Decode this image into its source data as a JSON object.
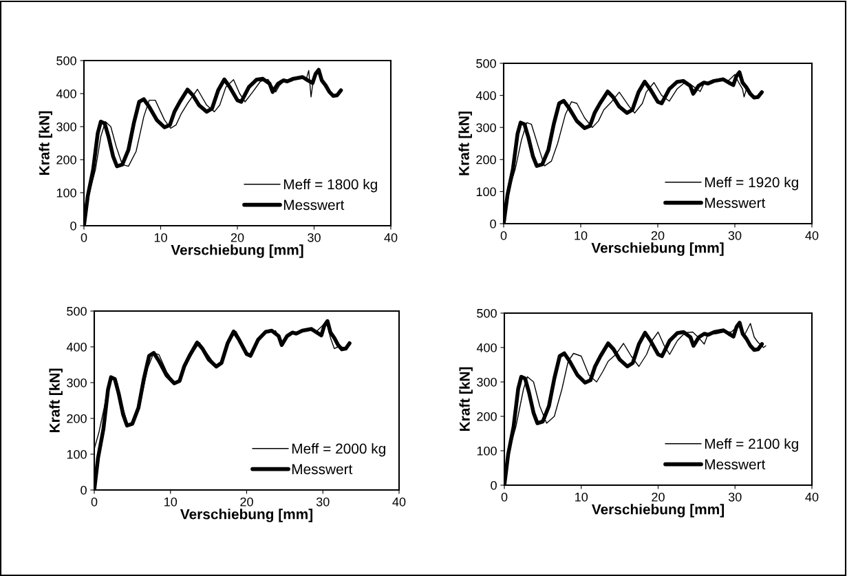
{
  "chart_data": [
    {
      "type": "line",
      "xlabel": "Verschiebung [mm]",
      "ylabel": "Kraft [kN]",
      "xlim": [
        0,
        40
      ],
      "ylim": [
        0,
        500
      ],
      "xticks": [
        0,
        10,
        20,
        30,
        40
      ],
      "yticks": [
        0,
        100,
        200,
        300,
        400,
        500
      ],
      "grid": false,
      "legend": "bottom right",
      "series": [
        {
          "name": "Meff = 1800 kg",
          "color": "#000000",
          "x": [
            0,
            0.5,
            1.5,
            2.2,
            2.8,
            3.5,
            4.2,
            5,
            5.8,
            6.8,
            7.8,
            8.5,
            9.3,
            10.5,
            11.3,
            12,
            12.7,
            13.5,
            14.8,
            16,
            17,
            17.7,
            18.5,
            19.5,
            20.3,
            21,
            22,
            23,
            24,
            25,
            25.5,
            26.2,
            27,
            28,
            29,
            29.3,
            29.6,
            29.8,
            30
          ],
          "values": [
            0,
            80,
            170,
            270,
            315,
            300,
            240,
            185,
            180,
            225,
            330,
            380,
            380,
            320,
            295,
            305,
            340,
            370,
            413,
            365,
            345,
            365,
            420,
            442,
            400,
            375,
            405,
            437,
            443,
            405,
            425,
            440,
            437,
            450,
            445,
            470,
            390,
            425,
            440
          ]
        },
        {
          "name": "Messwert",
          "color": "#000000",
          "x": [
            0,
            0.5,
            1.2,
            1.8,
            2.2,
            2.7,
            3.2,
            3.8,
            4.3,
            5,
            5.8,
            6.5,
            7.2,
            7.8,
            8.5,
            9.5,
            10.5,
            11.2,
            11.8,
            12.5,
            13.5,
            14.2,
            15,
            16,
            16.7,
            17.5,
            18.3,
            19,
            20,
            20.5,
            21.5,
            22.5,
            23.3,
            24.2,
            24.6,
            25.3,
            26,
            26.5,
            27.3,
            28.5,
            29.2,
            29.8,
            30.2,
            30.6,
            31,
            31.5,
            32,
            32.5,
            33,
            33.5
          ],
          "values": [
            0,
            90,
            170,
            280,
            315,
            310,
            270,
            210,
            180,
            185,
            230,
            310,
            375,
            383,
            360,
            320,
            298,
            305,
            345,
            375,
            412,
            395,
            365,
            345,
            355,
            410,
            443,
            420,
            380,
            375,
            420,
            442,
            445,
            430,
            405,
            430,
            440,
            437,
            445,
            450,
            440,
            432,
            460,
            472,
            440,
            425,
            405,
            393,
            395,
            410
          ]
        }
      ]
    },
    {
      "type": "line",
      "xlabel": "Verschiebung [mm]",
      "ylabel": "Kraft [kN]",
      "xlim": [
        0,
        40
      ],
      "ylim": [
        0,
        500
      ],
      "xticks": [
        0,
        10,
        20,
        30,
        40
      ],
      "yticks": [
        0,
        100,
        200,
        300,
        400,
        500
      ],
      "grid": false,
      "legend": "bottom right",
      "series": [
        {
          "name": "Meff = 1920 kg",
          "color": "#000000",
          "x": [
            0,
            0.5,
            1.5,
            2.3,
            3,
            3.6,
            4.5,
            5.3,
            6.2,
            7,
            8,
            8.8,
            9.5,
            10.5,
            11.5,
            12.3,
            13,
            14,
            15,
            16.3,
            17,
            18,
            18.5,
            19.5,
            20.5,
            21.5,
            22.5,
            23.5,
            24.5,
            25.5,
            26,
            27,
            28,
            29,
            30,
            30.5,
            31,
            31.2,
            31.5
          ],
          "values": [
            0,
            90,
            170,
            260,
            315,
            310,
            240,
            180,
            195,
            250,
            340,
            380,
            375,
            330,
            300,
            320,
            355,
            380,
            410,
            365,
            345,
            375,
            410,
            440,
            400,
            382,
            420,
            440,
            430,
            412,
            437,
            440,
            450,
            442,
            465,
            440,
            420,
            395,
            420
          ]
        },
        {
          "name": "Messwert",
          "color": "#000000",
          "x": [
            0,
            0.5,
            1.2,
            1.8,
            2.2,
            2.7,
            3.2,
            3.8,
            4.3,
            5,
            5.8,
            6.5,
            7.2,
            7.8,
            8.5,
            9.5,
            10.5,
            11.2,
            11.8,
            12.5,
            13.5,
            14.2,
            15,
            16,
            16.7,
            17.5,
            18.3,
            19,
            20,
            20.5,
            21.5,
            22.5,
            23.3,
            24.2,
            24.6,
            25.3,
            26,
            26.5,
            27.3,
            28.5,
            29.2,
            29.8,
            30.2,
            30.6,
            31,
            31.5,
            32,
            32.5,
            33,
            33.5
          ],
          "values": [
            0,
            90,
            170,
            280,
            315,
            310,
            270,
            210,
            180,
            185,
            230,
            310,
            375,
            383,
            360,
            320,
            298,
            305,
            345,
            375,
            412,
            395,
            365,
            345,
            355,
            410,
            443,
            420,
            380,
            375,
            420,
            442,
            445,
            430,
            405,
            430,
            440,
            437,
            445,
            450,
            440,
            432,
            460,
            472,
            440,
            425,
            405,
            393,
            395,
            410
          ]
        }
      ]
    },
    {
      "type": "line",
      "xlabel": "Verschiebung [mm]",
      "ylabel": "Kraft [kN]",
      "xlim": [
        0,
        40
      ],
      "ylim": [
        0,
        500
      ],
      "xticks": [
        0,
        10,
        20,
        30,
        40
      ],
      "yticks": [
        0,
        100,
        200,
        300,
        400,
        500
      ],
      "grid": false,
      "legend": "bottom right",
      "series": [
        {
          "name": "Meff = 2000 kg",
          "color": "#000000",
          "x": [
            0,
            0.6,
            1.3,
            1.9,
            2.3,
            3,
            3.6,
            4.4,
            5.2,
            6,
            7,
            7.8,
            8.5,
            9.5,
            10.5,
            11.2,
            11.8,
            12.8,
            13.8,
            15,
            16,
            16.7,
            17.5,
            18.6,
            20,
            20.6,
            21.5,
            22.5,
            23.8,
            24.6,
            25.4,
            26.5,
            28,
            29,
            30.5,
            31,
            31.5,
            32,
            33,
            33.5
          ],
          "values": [
            115,
            160,
            230,
            300,
            318,
            300,
            240,
            182,
            190,
            240,
            340,
            383,
            378,
            330,
            300,
            305,
            340,
            380,
            412,
            375,
            345,
            360,
            410,
            443,
            385,
            378,
            415,
            440,
            445,
            405,
            435,
            440,
            450,
            440,
            470,
            425,
            395,
            400,
            398,
            410
          ]
        },
        {
          "name": "Messwert",
          "color": "#000000",
          "x": [
            0,
            0.5,
            1.2,
            1.8,
            2.2,
            2.7,
            3.2,
            3.8,
            4.3,
            5,
            5.8,
            6.5,
            7.2,
            7.8,
            8.5,
            9.5,
            10.5,
            11.2,
            11.8,
            12.5,
            13.5,
            14.2,
            15,
            16,
            16.7,
            17.5,
            18.3,
            19,
            20,
            20.5,
            21.5,
            22.5,
            23.3,
            24.2,
            24.6,
            25.3,
            26,
            26.5,
            27.3,
            28.5,
            29.2,
            29.8,
            30.2,
            30.6,
            31,
            31.5,
            32,
            32.5,
            33,
            33.5
          ],
          "values": [
            0,
            90,
            170,
            280,
            315,
            310,
            270,
            210,
            180,
            185,
            230,
            310,
            375,
            383,
            360,
            320,
            298,
            305,
            345,
            375,
            412,
            395,
            365,
            345,
            355,
            410,
            443,
            420,
            380,
            375,
            420,
            442,
            445,
            430,
            405,
            430,
            440,
            437,
            445,
            450,
            440,
            432,
            460,
            472,
            440,
            425,
            405,
            393,
            395,
            410
          ]
        }
      ]
    },
    {
      "type": "line",
      "xlabel": "Verschiebung [mm]",
      "ylabel": "Kraft [kN]",
      "xlim": [
        0,
        40
      ],
      "ylim": [
        0,
        500
      ],
      "xticks": [
        0,
        10,
        20,
        30,
        40
      ],
      "yticks": [
        0,
        100,
        200,
        300,
        400,
        500
      ],
      "grid": false,
      "legend": "bottom right",
      "series": [
        {
          "name": "Meff = 2100 kg",
          "color": "#000000",
          "x": [
            0,
            0.5,
            1.5,
            2.5,
            3,
            3.8,
            4.6,
            5.5,
            6.5,
            7.5,
            8.3,
            9,
            10,
            11,
            12,
            12.8,
            13.5,
            14.5,
            15.5,
            16.5,
            17.5,
            18.5,
            19.2,
            20,
            20.8,
            21.5,
            22.5,
            23.5,
            24.5,
            25.2,
            26,
            26.5,
            27.5,
            28.5,
            29.5,
            30.5,
            31.2,
            32,
            32.5,
            33,
            33.7,
            34
          ],
          "values": [
            0,
            90,
            170,
            280,
            315,
            300,
            230,
            180,
            200,
            280,
            360,
            383,
            375,
            320,
            300,
            330,
            360,
            380,
            412,
            375,
            345,
            380,
            420,
            445,
            405,
            380,
            420,
            443,
            445,
            430,
            410,
            440,
            440,
            445,
            445,
            465,
            435,
            470,
            430,
            415,
            400,
            405
          ]
        },
        {
          "name": "Messwert",
          "color": "#000000",
          "x": [
            0,
            0.5,
            1.2,
            1.8,
            2.2,
            2.7,
            3.2,
            3.8,
            4.3,
            5,
            5.8,
            6.5,
            7.2,
            7.8,
            8.5,
            9.5,
            10.5,
            11.2,
            11.8,
            12.5,
            13.5,
            14.2,
            15,
            16,
            16.7,
            17.5,
            18.3,
            19,
            20,
            20.5,
            21.5,
            22.5,
            23.3,
            24.2,
            24.6,
            25.3,
            26,
            26.5,
            27.3,
            28.5,
            29.2,
            29.8,
            30.2,
            30.6,
            31,
            31.5,
            32,
            32.5,
            33,
            33.5
          ],
          "values": [
            0,
            90,
            170,
            280,
            315,
            310,
            270,
            210,
            180,
            185,
            230,
            310,
            375,
            383,
            360,
            320,
            298,
            305,
            345,
            375,
            412,
            395,
            365,
            345,
            355,
            410,
            443,
            420,
            380,
            375,
            420,
            442,
            445,
            430,
            405,
            430,
            440,
            437,
            445,
            450,
            440,
            432,
            460,
            472,
            440,
            425,
            405,
            393,
            395,
            410
          ]
        }
      ]
    }
  ]
}
